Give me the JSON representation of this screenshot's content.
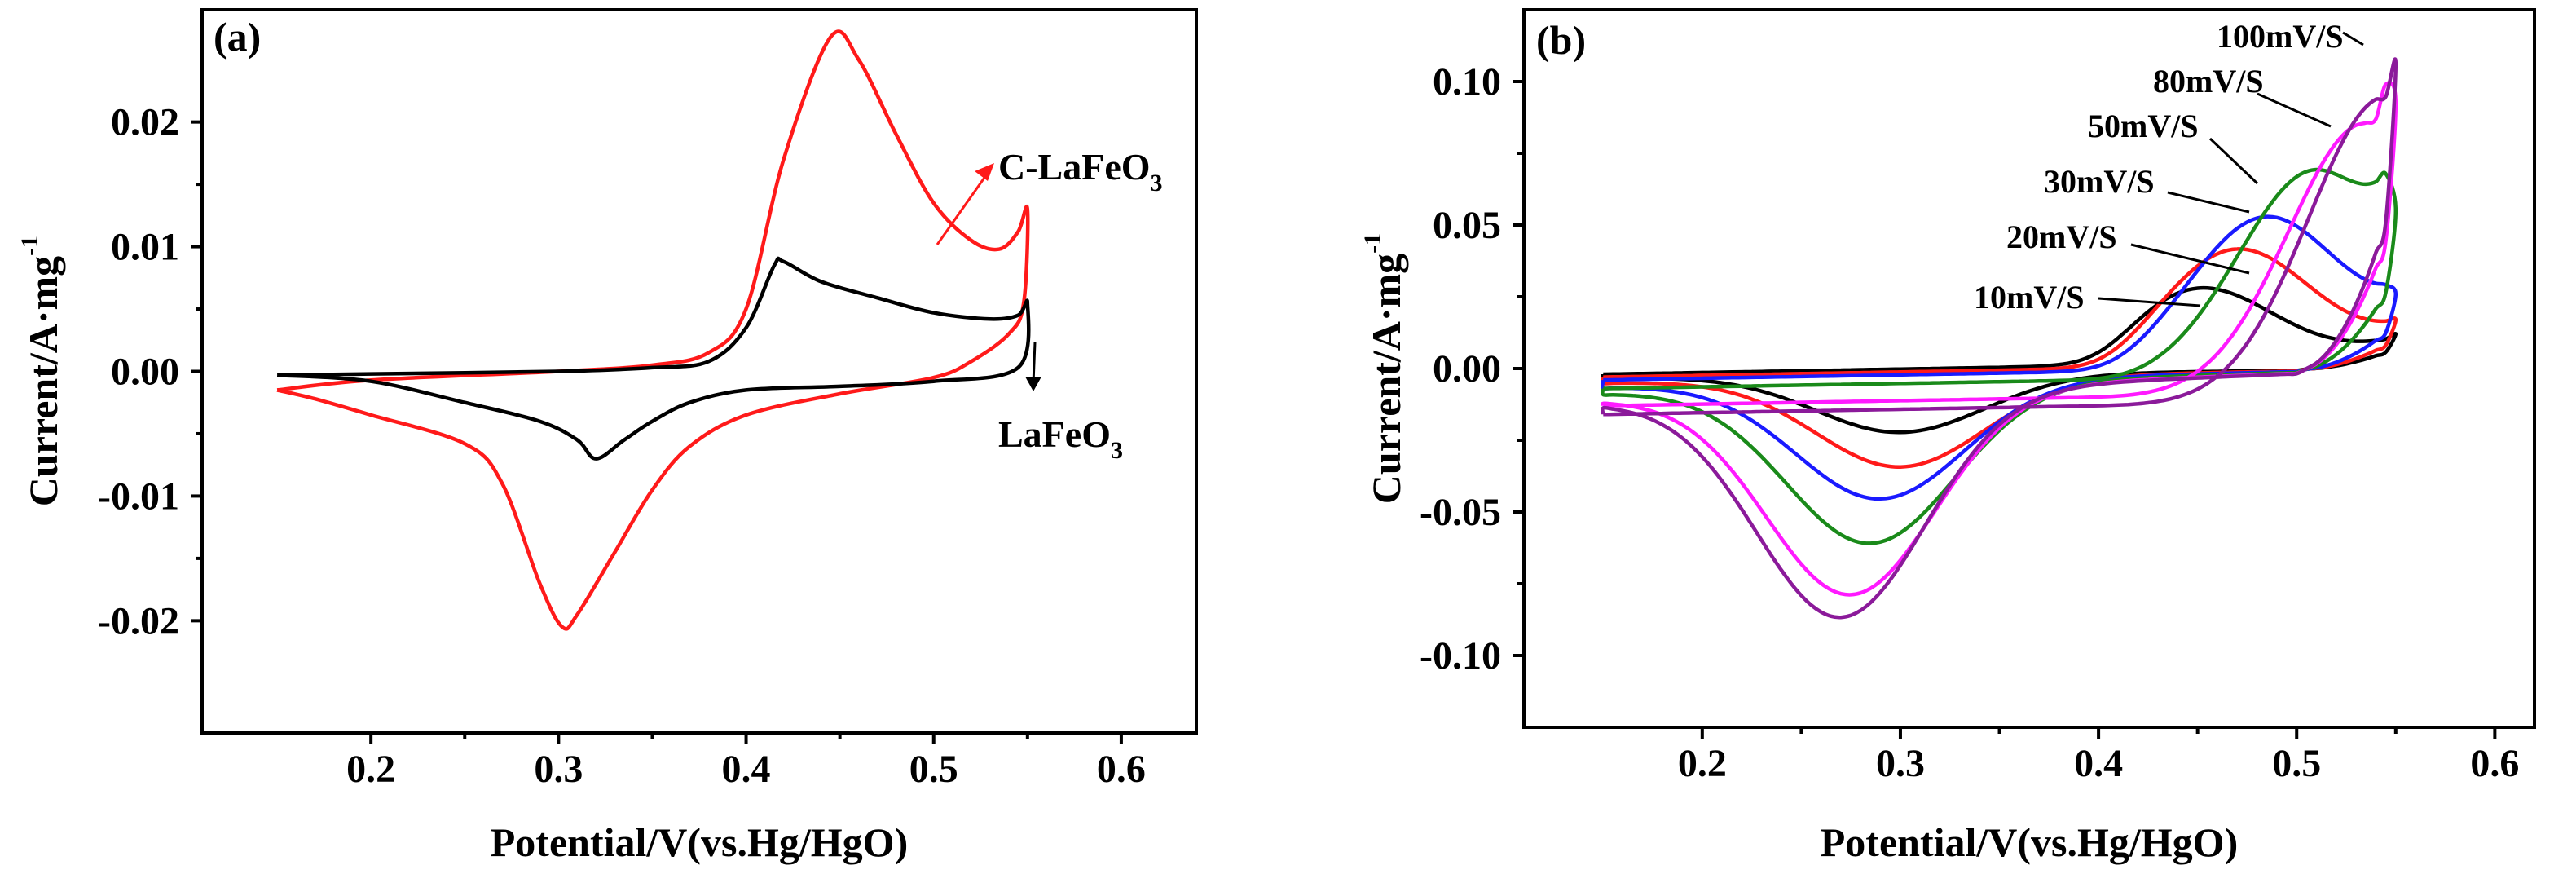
{
  "chart_data": [
    {
      "type": "line",
      "panel_label": "(a)",
      "xlabel": "Potential/V(vs.Hg/HgO)",
      "ylabel_main": "Current/A·mg",
      "ylabel_sup": "-1",
      "xlim": [
        0.11,
        0.64
      ],
      "ylim": [
        -0.029,
        0.029
      ],
      "xticks": [
        0.2,
        0.3,
        0.4,
        0.5,
        0.6
      ],
      "xtick_labels": [
        "0.2",
        "0.3",
        "0.4",
        "0.5",
        "0.6"
      ],
      "yticks": [
        -0.02,
        -0.01,
        0.0,
        0.01,
        0.02
      ],
      "ytick_labels": [
        "-0.02",
        "-0.01",
        "0.00",
        "0.01",
        "0.02"
      ],
      "series": [
        {
          "name": "C-LaFeO3",
          "color": "#ff1a1a",
          "label_main": "C-LaFeO",
          "label_sub": "3",
          "points": [
            [
              0.15,
              -0.0015
            ],
            [
              0.2,
              -0.0007
            ],
            [
              0.3,
              0.0
            ],
            [
              0.35,
              0.0005
            ],
            [
              0.38,
              0.0015
            ],
            [
              0.4,
              0.005
            ],
            [
              0.42,
              0.017
            ],
            [
              0.445,
              0.0268
            ],
            [
              0.46,
              0.025
            ],
            [
              0.48,
              0.019
            ],
            [
              0.5,
              0.0135
            ],
            [
              0.52,
              0.0105
            ],
            [
              0.535,
              0.0098
            ],
            [
              0.545,
              0.0112
            ],
            [
              0.55,
              0.013
            ],
            [
              0.548,
              0.0055
            ],
            [
              0.54,
              0.003
            ],
            [
              0.52,
              0.0008
            ],
            [
              0.5,
              -0.0005
            ],
            [
              0.45,
              -0.0018
            ],
            [
              0.4,
              -0.0035
            ],
            [
              0.37,
              -0.006
            ],
            [
              0.35,
              -0.0095
            ],
            [
              0.33,
              -0.0145
            ],
            [
              0.31,
              -0.0195
            ],
            [
              0.302,
              -0.0205
            ],
            [
              0.29,
              -0.017
            ],
            [
              0.27,
              -0.009
            ],
            [
              0.25,
              -0.0058
            ],
            [
              0.2,
              -0.0035
            ],
            [
              0.17,
              -0.0022
            ],
            [
              0.15,
              -0.0015
            ]
          ]
        },
        {
          "name": "LaFeO3",
          "color": "#000000",
          "label_main": "LaFeO",
          "label_sub": "3",
          "points": [
            [
              0.15,
              -0.0003
            ],
            [
              0.2,
              -0.0002
            ],
            [
              0.3,
              0.0
            ],
            [
              0.35,
              0.0003
            ],
            [
              0.38,
              0.0008
            ],
            [
              0.4,
              0.0035
            ],
            [
              0.415,
              0.0085
            ],
            [
              0.42,
              0.0088
            ],
            [
              0.44,
              0.0072
            ],
            [
              0.47,
              0.0059
            ],
            [
              0.5,
              0.0047
            ],
            [
              0.53,
              0.0042
            ],
            [
              0.545,
              0.0045
            ],
            [
              0.55,
              0.0055
            ],
            [
              0.545,
              0.0003
            ],
            [
              0.5,
              -0.0008
            ],
            [
              0.45,
              -0.0012
            ],
            [
              0.4,
              -0.0015
            ],
            [
              0.37,
              -0.0025
            ],
            [
              0.35,
              -0.004
            ],
            [
              0.335,
              -0.0055
            ],
            [
              0.32,
              -0.007
            ],
            [
              0.31,
              -0.0055
            ],
            [
              0.29,
              -0.004
            ],
            [
              0.25,
              -0.0025
            ],
            [
              0.2,
              -0.0008
            ],
            [
              0.15,
              -0.0003
            ]
          ]
        }
      ]
    },
    {
      "type": "line",
      "panel_label": "(b)",
      "xlabel": "Potential/V(vs.Hg/HgO)",
      "ylabel_main": "Current/A·mg",
      "ylabel_sup": "-1",
      "xlim": [
        0.11,
        0.62
      ],
      "ylim": [
        -0.125,
        0.125
      ],
      "xticks": [
        0.2,
        0.3,
        0.4,
        0.5,
        0.6
      ],
      "xtick_labels": [
        "0.2",
        "0.3",
        "0.4",
        "0.5",
        "0.6"
      ],
      "yticks": [
        -0.1,
        -0.05,
        0.0,
        0.05,
        0.1
      ],
      "ytick_labels": [
        "-0.10",
        "-0.05",
        "0.00",
        "0.05",
        "0.10"
      ],
      "series": [
        {
          "name": "10mV/S",
          "color": "#000000",
          "ipa": 0.027,
          "epa": 0.45,
          "ipc": -0.02,
          "epc": 0.3,
          "ev": 0.55,
          "iv": 0.012,
          "istart": -0.002
        },
        {
          "name": "20mV/S",
          "color": "#ff1a1a",
          "ipa": 0.041,
          "epa": 0.47,
          "ipc": -0.031,
          "epc": 0.3,
          "ev": 0.55,
          "iv": 0.017,
          "istart": -0.003
        },
        {
          "name": "30mV/S",
          "color": "#1a1aff",
          "ipa": 0.053,
          "epa": 0.485,
          "ipc": -0.041,
          "epc": 0.29,
          "ev": 0.55,
          "iv": 0.026,
          "istart": -0.004
        },
        {
          "name": "50mV/S",
          "color": "#1a8a1a",
          "ipa": 0.072,
          "epa": 0.51,
          "ipc": -0.055,
          "epc": 0.285,
          "ev": 0.55,
          "iv": 0.055,
          "istart": -0.007
        },
        {
          "name": "80mV/S",
          "color": "#ff1aff",
          "ipa": 0.094,
          "epa": 0.535,
          "ipc": -0.071,
          "epc": 0.275,
          "ev": 0.55,
          "iv": 0.092,
          "istart": -0.013
        },
        {
          "name": "100mV/S",
          "color": "#8b1a9a",
          "ipa": 0.106,
          "epa": 0.545,
          "ipc": -0.078,
          "epc": 0.27,
          "ev": 0.55,
          "iv": 0.106,
          "istart": -0.016
        }
      ]
    }
  ]
}
